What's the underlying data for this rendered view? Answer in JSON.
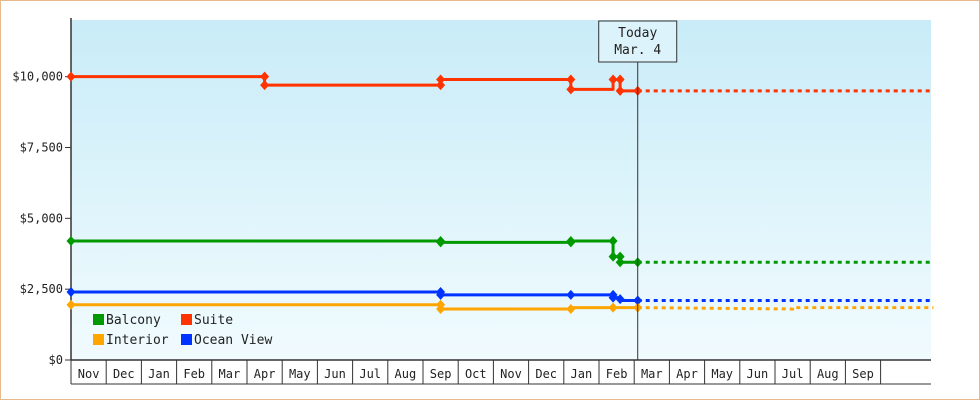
{
  "chart_data": {
    "type": "line",
    "title": "",
    "xlabel": "",
    "ylabel": "",
    "ylim": [
      0,
      12000
    ],
    "grid": false,
    "legend": "bottom-left",
    "y_ticks": [
      {
        "value": 0,
        "label": "$0"
      },
      {
        "value": 2500,
        "label": "$2,500"
      },
      {
        "value": 5000,
        "label": "$5,000"
      },
      {
        "value": 7500,
        "label": "$7,500"
      },
      {
        "value": 10000,
        "label": "$10,000"
      }
    ],
    "months": [
      "Nov",
      "Dec",
      "Jan",
      "Feb",
      "Mar",
      "Apr",
      "May",
      "Jun",
      "Jul",
      "Aug",
      "Sep",
      "Oct",
      "Nov",
      "Dec",
      "Jan",
      "Feb",
      "Mar",
      "Apr",
      "May",
      "Jun",
      "Jul",
      "Aug",
      "Sep"
    ],
    "today": {
      "label_line1": "Today",
      "label_line2": "Mar. 4",
      "x": 16.1
    },
    "series": [
      {
        "name": "Suite",
        "color": "#ff3300",
        "points": [
          [
            0,
            10000
          ],
          [
            5.5,
            10000
          ],
          [
            5.5,
            9700
          ],
          [
            10.5,
            9700
          ],
          [
            10.5,
            9900
          ],
          [
            14.2,
            9900
          ],
          [
            14.2,
            9550
          ],
          [
            15.4,
            9550
          ],
          [
            15.4,
            9900
          ],
          [
            15.6,
            9900
          ],
          [
            15.6,
            9500
          ],
          [
            16.1,
            9500
          ]
        ],
        "markers": [
          [
            0,
            10000
          ],
          [
            5.5,
            10000
          ],
          [
            5.5,
            9700
          ],
          [
            10.5,
            9700
          ],
          [
            10.5,
            9900
          ],
          [
            14.2,
            9900
          ],
          [
            14.2,
            9550
          ],
          [
            15.4,
            9900
          ],
          [
            15.6,
            9900
          ],
          [
            15.6,
            9500
          ],
          [
            16.1,
            9500
          ]
        ],
        "projection": [
          [
            16.1,
            9500
          ],
          [
            24.5,
            9500
          ]
        ]
      },
      {
        "name": "Balcony",
        "color": "#009900",
        "points": [
          [
            0,
            4200
          ],
          [
            10.5,
            4200
          ],
          [
            10.5,
            4150
          ],
          [
            14.2,
            4150
          ],
          [
            14.2,
            4200
          ],
          [
            15.4,
            4200
          ],
          [
            15.4,
            3650
          ],
          [
            15.6,
            3650
          ],
          [
            15.6,
            3450
          ],
          [
            16.1,
            3450
          ]
        ],
        "markers": [
          [
            0,
            4200
          ],
          [
            10.5,
            4200
          ],
          [
            10.5,
            4150
          ],
          [
            14.2,
            4150
          ],
          [
            14.2,
            4200
          ],
          [
            15.4,
            4200
          ],
          [
            15.4,
            3650
          ],
          [
            15.6,
            3650
          ],
          [
            15.6,
            3450
          ],
          [
            16.1,
            3450
          ]
        ],
        "projection": [
          [
            16.1,
            3450
          ],
          [
            24.5,
            3450
          ]
        ]
      },
      {
        "name": "Ocean View",
        "color": "#0033ff",
        "points": [
          [
            0,
            2400
          ],
          [
            10.5,
            2400
          ],
          [
            10.5,
            2300
          ],
          [
            14.2,
            2300
          ],
          [
            15.4,
            2300
          ],
          [
            15.4,
            2200
          ],
          [
            15.6,
            2200
          ],
          [
            15.6,
            2100
          ],
          [
            16.1,
            2100
          ]
        ],
        "markers": [
          [
            0,
            2400
          ],
          [
            10.5,
            2400
          ],
          [
            10.5,
            2300
          ],
          [
            14.2,
            2300
          ],
          [
            15.4,
            2300
          ],
          [
            15.4,
            2200
          ],
          [
            15.6,
            2150
          ],
          [
            16.1,
            2100
          ]
        ],
        "projection": [
          [
            16.1,
            2100
          ],
          [
            24.5,
            2100
          ]
        ]
      },
      {
        "name": "Interior",
        "color": "#ffa500",
        "points": [
          [
            0,
            1950
          ],
          [
            10.5,
            1950
          ],
          [
            10.5,
            1800
          ],
          [
            14.2,
            1800
          ],
          [
            14.2,
            1850
          ],
          [
            16.1,
            1850
          ]
        ],
        "markers": [
          [
            0,
            1950
          ],
          [
            10.5,
            1950
          ],
          [
            10.5,
            1800
          ],
          [
            14.2,
            1800
          ],
          [
            15.4,
            1850
          ],
          [
            16.1,
            1850
          ]
        ],
        "projection": [
          [
            16.1,
            1850
          ],
          [
            20.5,
            1800
          ],
          [
            20.5,
            1850
          ],
          [
            24.5,
            1850
          ]
        ]
      }
    ],
    "legend_items": [
      {
        "name": "Balcony",
        "color": "#009900"
      },
      {
        "name": "Suite",
        "color": "#ff3300"
      },
      {
        "name": "Interior",
        "color": "#ffa500"
      },
      {
        "name": "Ocean View",
        "color": "#0033ff"
      }
    ]
  }
}
